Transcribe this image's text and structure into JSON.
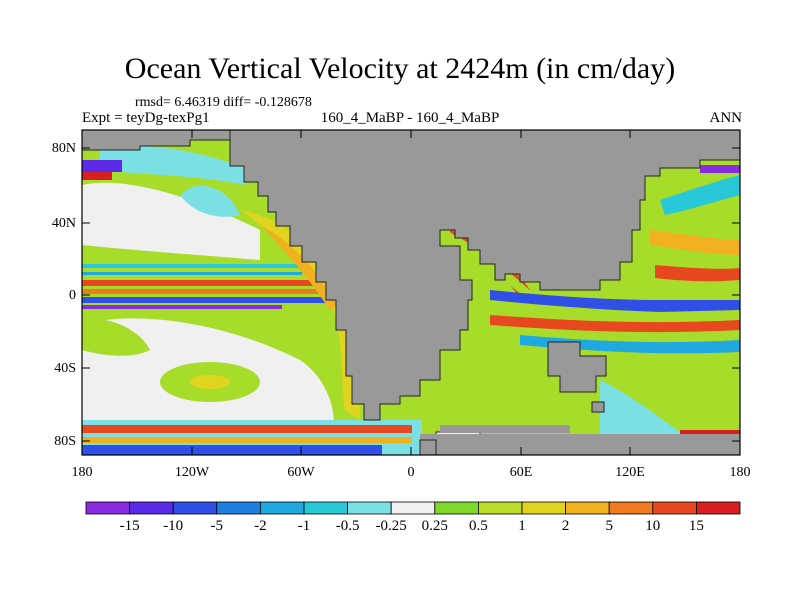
{
  "title": "Ocean Vertical Velocity at 2424m (in cm/day)",
  "stats": "rmsd= 6.46319 diff= -0.128678",
  "left_label": "Expt = teyDg-texPg1",
  "center_label": "160_4_MaBP - 160_4_MaBP",
  "right_label": "ANN",
  "lat_ticks": [
    "80N",
    "40N",
    "0",
    "40S",
    "80S"
  ],
  "lon_ticks": [
    "180",
    "120W",
    "60W",
    "0",
    "60E",
    "120E",
    "180"
  ],
  "colorbar": {
    "labels": [
      "-15",
      "-10",
      "-5",
      "-2",
      "-1",
      "-0.5",
      "-0.25",
      "0.25",
      "0.5",
      "1",
      "2",
      "5",
      "10",
      "15"
    ],
    "colors": [
      "#8a2be2",
      "#5b2be8",
      "#2f4fe6",
      "#1f7fe0",
      "#20a8e0",
      "#28c8d8",
      "#7ae0e4",
      "#f0f0f0",
      "#7ed82a",
      "#b8dc28",
      "#e0d41e",
      "#f0b020",
      "#f07a20",
      "#e84820",
      "#d82020"
    ]
  },
  "land_color": "#999999"
}
